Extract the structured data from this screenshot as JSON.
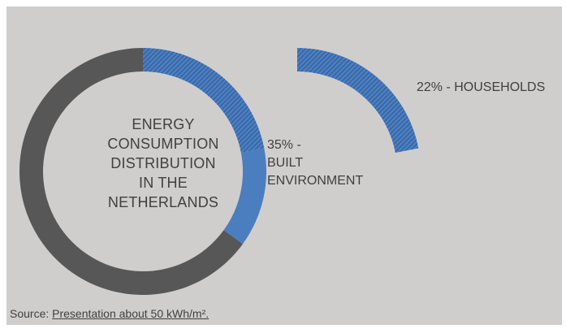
{
  "chart_data": {
    "type": "pie",
    "title": "ENERGY CONSUMPTION DISTRIBUTION IN THE NETHERLANDS",
    "slices": [
      {
        "label": "BUILT ENVIRONMENT",
        "value": 35,
        "text": "35% -\nBUILT\nENVIRONMENT",
        "color": "#4a7ebf"
      },
      {
        "label": "HOUSEHOLDS",
        "value": 22,
        "text": "22% - HOUSEHOLDS",
        "color": "#4a7ebf",
        "pattern": "hatched"
      },
      {
        "label": "",
        "value": 65,
        "color": "#575757"
      }
    ],
    "colors": {
      "background": "#d0cecd",
      "remainder": "#575757",
      "accent": "#4a7ebf",
      "hatch": "#2a4f8a"
    }
  },
  "source": {
    "prefix": "Source: ",
    "link_text": "Presentation about 50 kWh/m².",
    "suffix": ""
  }
}
